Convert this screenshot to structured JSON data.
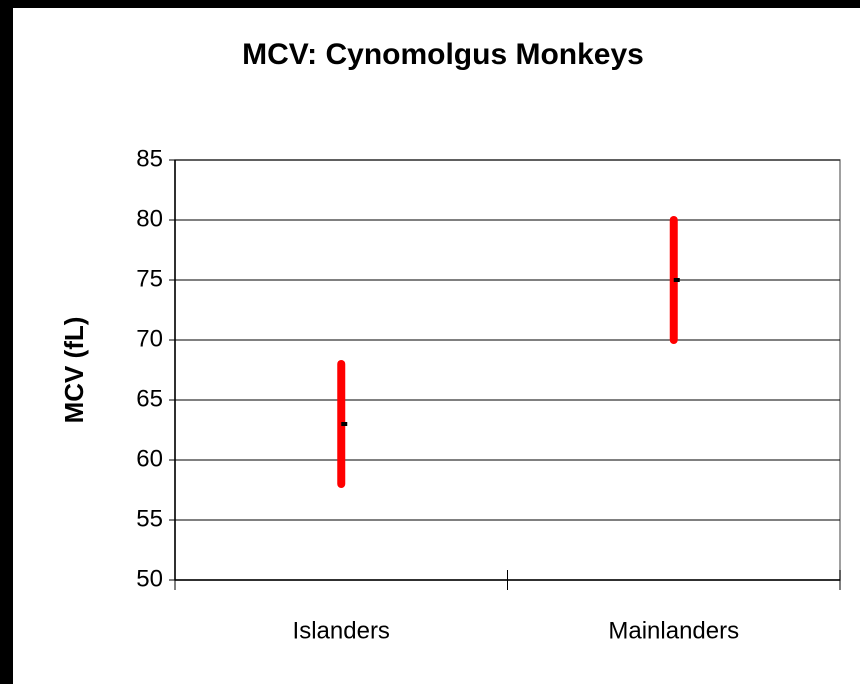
{
  "chart_data": {
    "type": "range",
    "title": "MCV: Cynomolgus Monkeys",
    "y_label": "MCV (fL)",
    "categories": [
      "Islanders",
      "Mainlanders"
    ],
    "low": [
      58,
      70
    ],
    "high": [
      68,
      80
    ],
    "mean": [
      63,
      75
    ],
    "color": "#ff0000",
    "mean_color": "#000000",
    "ylim": [
      50,
      85
    ],
    "yticks": [
      50,
      55,
      60,
      65,
      70,
      75,
      80,
      85
    ],
    "grid": true
  }
}
